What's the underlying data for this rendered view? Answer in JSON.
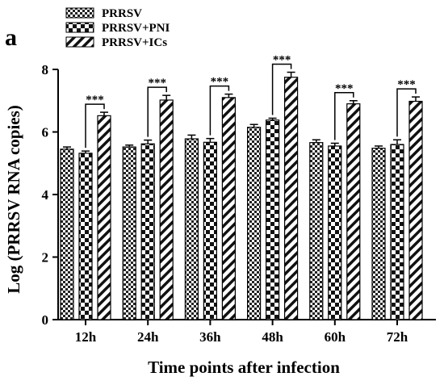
{
  "panel_label": "a",
  "chart_data": {
    "type": "bar",
    "title": "",
    "xlabel": "Time points after infection",
    "ylabel": "Log (PRRSV RNA copies)",
    "ylim": [
      0,
      8
    ],
    "yticks": [
      0,
      2,
      4,
      6,
      8
    ],
    "categories": [
      "12h",
      "24h",
      "36h",
      "48h",
      "60h",
      "72h"
    ],
    "series": [
      {
        "name": "PRRSV",
        "pattern": "checker",
        "values": [
          5.45,
          5.52,
          5.78,
          6.15,
          5.66,
          5.48
        ],
        "errors": [
          0.07,
          0.06,
          0.12,
          0.09,
          0.09,
          0.07
        ]
      },
      {
        "name": "PRRSV+PNI",
        "pattern": "checker-large",
        "values": [
          5.32,
          5.62,
          5.67,
          6.38,
          5.55,
          5.6
        ],
        "errors": [
          0.07,
          0.12,
          0.12,
          0.06,
          0.09,
          0.15
        ]
      },
      {
        "name": "PRRSV+ICs",
        "pattern": "diagonal",
        "values": [
          6.52,
          7.02,
          7.1,
          7.75,
          6.9,
          6.98
        ],
        "errors": [
          0.11,
          0.15,
          0.11,
          0.16,
          0.1,
          0.14
        ]
      }
    ],
    "significance": [
      "***",
      "***",
      "***",
      "***",
      "***",
      "***"
    ],
    "legend_position": "top-left"
  }
}
